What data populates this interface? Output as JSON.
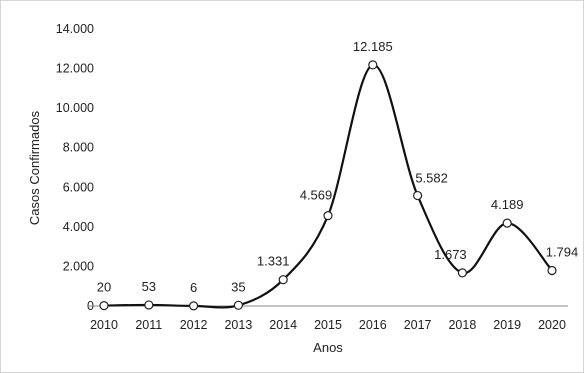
{
  "chart_data": {
    "type": "line",
    "title": "",
    "xlabel": "Anos",
    "ylabel": "Casos Confirmados",
    "ylim": [
      0,
      14000
    ],
    "yticks": [
      0,
      2000,
      4000,
      6000,
      8000,
      10000,
      12000,
      14000
    ],
    "ytick_labels": [
      "0",
      "2.000",
      "4.000",
      "6.000",
      "8.000",
      "10.000",
      "12.000",
      "14.000"
    ],
    "categories": [
      "2010",
      "2011",
      "2012",
      "2013",
      "2014",
      "2015",
      "2016",
      "2017",
      "2018",
      "2019",
      "2020"
    ],
    "values": [
      20,
      53,
      6,
      35,
      1331,
      4569,
      12185,
      5582,
      1673,
      4189,
      1794
    ],
    "data_labels": [
      "20",
      "53",
      "6",
      "35",
      "1.331",
      "4.569",
      "12.185",
      "5.582",
      "1.673",
      "4.189",
      "1.794"
    ],
    "smooth": true,
    "grid": false,
    "legend": "none",
    "line_color": "#111111",
    "marker_fill": "#ffffff"
  }
}
